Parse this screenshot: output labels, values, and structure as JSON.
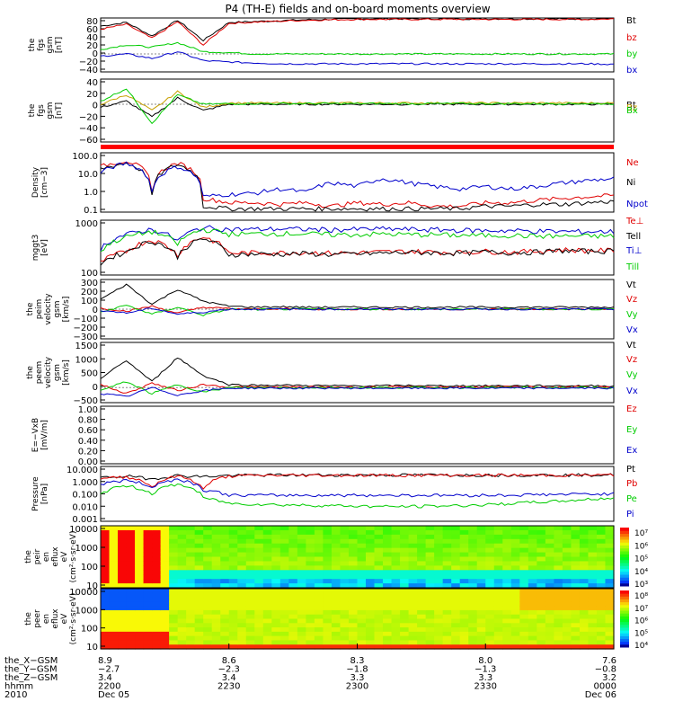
{
  "title": "P4 (TH-E) fields and on-board moments overview",
  "colors": {
    "black": "#000000",
    "red": "#e00000",
    "green": "#00cc00",
    "blue": "#0000cc",
    "orange": "#c8a000"
  },
  "chart_data": [
    {
      "type": "line",
      "id": "fgs_gsm",
      "ylabel": [
        "the",
        "fgs",
        "gsm",
        "[nT]"
      ],
      "ylim": [
        -40,
        80
      ],
      "yticks": [
        "80",
        "60",
        "40",
        "20",
        "0",
        "−20",
        "−40"
      ],
      "series": [
        {
          "name": "Bt",
          "color": "#000000",
          "values": [
            62,
            70,
            40,
            75,
            30,
            70,
            72,
            74,
            76,
            77,
            78,
            78,
            78,
            78,
            78,
            78,
            78,
            78,
            78,
            78,
            79
          ]
        },
        {
          "name": "bz",
          "color": "#e00000",
          "values": [
            55,
            66,
            35,
            72,
            20,
            68,
            71,
            73,
            75,
            76,
            77,
            77,
            77,
            77,
            77,
            77,
            77,
            77,
            77,
            77,
            78
          ]
        },
        {
          "name": "by",
          "color": "#00cc00",
          "values": [
            10,
            20,
            15,
            25,
            5,
            3,
            0,
            0,
            0,
            0,
            0,
            0,
            0,
            0,
            0,
            0,
            0,
            0,
            0,
            0,
            0
          ]
        },
        {
          "name": "bx",
          "color": "#0000cc",
          "values": [
            -5,
            0,
            -10,
            5,
            -15,
            -18,
            -20,
            -22,
            -22,
            -22,
            -22,
            -22,
            -22,
            -22,
            -22,
            -22,
            -22,
            -22,
            -22,
            -22,
            -23
          ]
        }
      ]
    },
    {
      "type": "line",
      "id": "fgs_dsl",
      "ylabel": [
        "the",
        "fgs",
        "gsm",
        "[nT]"
      ],
      "ylim": [
        -60,
        40
      ],
      "yticks": [
        "40",
        "20",
        "0",
        "−20",
        "−40",
        "−60"
      ],
      "series": [
        {
          "name": "Bt",
          "color": "#000000",
          "values": [
            -5,
            5,
            -20,
            10,
            -10,
            0,
            0,
            0,
            0,
            0,
            0,
            0,
            0,
            0,
            0,
            0,
            0,
            0,
            0,
            0,
            0
          ]
        },
        {
          "name": "Bz",
          "color": "#c8a000",
          "values": [
            0,
            15,
            -10,
            20,
            -5,
            2,
            2,
            2,
            2,
            2,
            2,
            2,
            2,
            2,
            2,
            2,
            2,
            2,
            2,
            2,
            2
          ]
        },
        {
          "name": "Bx",
          "color": "#00cc00",
          "values": [
            5,
            25,
            -30,
            15,
            0,
            1,
            1,
            1,
            1,
            1,
            1,
            1,
            1,
            1,
            1,
            1,
            1,
            1,
            1,
            1,
            1
          ]
        }
      ]
    },
    {
      "type": "line",
      "id": "density",
      "log": true,
      "ylabel": [
        "Density",
        "[cm−3]"
      ],
      "ylim": [
        0.1,
        100
      ],
      "yticks": [
        "100.0",
        "10.0",
        "1.0",
        "0.1"
      ],
      "series": [
        {
          "name": "Ne",
          "color": "#e00000",
          "values": [
            20,
            40,
            1,
            30,
            0.5,
            0.3,
            0.3,
            0.25,
            0.3,
            0.2,
            0.3,
            0.25,
            0.3,
            0.2,
            0.2,
            0.3,
            0.3,
            0.4,
            0.5,
            0.6,
            0.7
          ]
        },
        {
          "name": "Ni",
          "color": "#000000",
          "values": [
            15,
            30,
            0.6,
            25,
            0.2,
            0.15,
            0.15,
            0.15,
            0.15,
            0.15,
            0.15,
            0.15,
            0.15,
            0.15,
            0.15,
            0.2,
            0.2,
            0.25,
            0.25,
            0.3,
            0.35
          ]
        },
        {
          "name": "Npot",
          "color": "#0000cc",
          "values": [
            10,
            30,
            1,
            20,
            0.6,
            0.8,
            0.9,
            1.5,
            1,
            3,
            2,
            5,
            3,
            2,
            1.5,
            2,
            1.5,
            2,
            3,
            4,
            5
          ]
        }
      ]
    },
    {
      "type": "line",
      "id": "temp",
      "log": true,
      "ylabel": [
        "mggt3",
        "[eV]"
      ],
      "ylim": [
        30,
        6000
      ],
      "yticks": [
        "1000",
        "100"
      ],
      "series": [
        {
          "name": "Te⊥",
          "color": "#e00000",
          "values": [
            100,
            300,
            900,
            200,
            1200,
            250,
            260,
            260,
            270,
            250,
            260,
            280,
            300,
            280,
            270,
            300,
            280,
            300,
            350,
            320,
            330
          ]
        },
        {
          "name": "Tell",
          "color": "#000000",
          "values": [
            90,
            280,
            800,
            180,
            1000,
            220,
            230,
            230,
            240,
            220,
            230,
            250,
            270,
            260,
            250,
            280,
            260,
            280,
            320,
            300,
            310
          ]
        },
        {
          "name": "Ti⊥",
          "color": "#0000cc",
          "values": [
            400,
            1500,
            2500,
            800,
            3000,
            2500,
            2500,
            2600,
            2500,
            2400,
            2500,
            2600,
            2500,
            2400,
            2300,
            2200,
            2200,
            2100,
            2000,
            2000,
            2000
          ]
        },
        {
          "name": "Till",
          "color": "#00cc00",
          "values": [
            300,
            1200,
            2000,
            600,
            2500,
            1600,
            1600,
            1700,
            1600,
            1500,
            1500,
            1600,
            1500,
            1500,
            1400,
            1400,
            1400,
            1300,
            1300,
            1300,
            1300
          ]
        }
      ]
    },
    {
      "type": "line",
      "id": "peim_vel",
      "ylabel": [
        "the",
        "peim",
        "velocity",
        "gsm",
        "[km/s]"
      ],
      "ylim": [
        -300,
        300
      ],
      "yticks": [
        "300",
        "200",
        "100",
        "0",
        "−100",
        "−200",
        "−300"
      ],
      "series": [
        {
          "name": "Vt",
          "color": "#000000",
          "values": [
            100,
            250,
            50,
            200,
            80,
            30,
            20,
            25,
            20,
            20,
            20,
            20,
            20,
            20,
            20,
            20,
            20,
            20,
            20,
            20,
            20
          ]
        },
        {
          "name": "Vz",
          "color": "#e00000",
          "values": [
            10,
            -20,
            30,
            -40,
            20,
            5,
            0,
            5,
            0,
            0,
            0,
            0,
            0,
            0,
            0,
            0,
            0,
            0,
            0,
            0,
            0
          ]
        },
        {
          "name": "Vy",
          "color": "#00cc00",
          "values": [
            -30,
            40,
            -50,
            20,
            -60,
            0,
            -5,
            0,
            0,
            0,
            0,
            0,
            0,
            0,
            0,
            0,
            0,
            0,
            0,
            0,
            0
          ]
        },
        {
          "name": "Vx",
          "color": "#0000cc",
          "values": [
            -10,
            -40,
            10,
            -50,
            -30,
            0,
            0,
            0,
            0,
            0,
            0,
            0,
            0,
            0,
            0,
            0,
            0,
            0,
            0,
            0,
            0
          ]
        }
      ]
    },
    {
      "type": "line",
      "id": "peem_vel",
      "ylabel": [
        "the",
        "peem",
        "velocity",
        "gsm",
        "[km/s]"
      ],
      "ylim": [
        -500,
        1500
      ],
      "yticks": [
        "1500",
        "1000",
        "500",
        "0",
        "−500"
      ],
      "series": [
        {
          "name": "Vt",
          "color": "#000000",
          "values": [
            300,
            900,
            200,
            1000,
            400,
            100,
            80,
            80,
            70,
            60,
            60,
            60,
            70,
            60,
            60,
            60,
            60,
            60,
            60,
            60,
            60
          ]
        },
        {
          "name": "Vz",
          "color": "#e00000",
          "values": [
            100,
            -200,
            150,
            -100,
            100,
            20,
            20,
            20,
            20,
            20,
            20,
            20,
            20,
            20,
            20,
            20,
            20,
            20,
            20,
            20,
            20
          ]
        },
        {
          "name": "Vy",
          "color": "#00cc00",
          "values": [
            -100,
            200,
            -200,
            100,
            -150,
            0,
            0,
            0,
            0,
            0,
            0,
            0,
            0,
            0,
            0,
            0,
            0,
            0,
            0,
            0,
            0
          ]
        },
        {
          "name": "Vx",
          "color": "#0000cc",
          "values": [
            -200,
            -300,
            0,
            -250,
            -100,
            -20,
            -20,
            -20,
            -20,
            -20,
            -20,
            -20,
            -20,
            -20,
            -20,
            -20,
            -20,
            -20,
            -20,
            -20,
            -20
          ]
        }
      ]
    },
    {
      "type": "line",
      "id": "efield",
      "ylabel": [
        "E=−VxB",
        "[mV/m]"
      ],
      "ylim": [
        0,
        1
      ],
      "yticks": [
        "1.00",
        "0.80",
        "0.60",
        "0.40",
        "0.20",
        "0.00"
      ],
      "series": [
        {
          "name": "Ez",
          "color": "#e00000",
          "values": []
        },
        {
          "name": "Ey",
          "color": "#00cc00",
          "values": []
        },
        {
          "name": "Ex",
          "color": "#0000cc",
          "values": []
        }
      ]
    },
    {
      "type": "line",
      "id": "pressure",
      "log": true,
      "ylabel": [
        "Pressure",
        "[nPa]"
      ],
      "ylim": [
        0.001,
        10
      ],
      "yticks": [
        "10.000",
        "1.000",
        "0.100",
        "0.010",
        "0.001"
      ],
      "series": [
        {
          "name": "Pt",
          "color": "#000000",
          "values": [
            1.5,
            2,
            1.2,
            2.2,
            1.8,
            2.2,
            2.3,
            2.4,
            2.4,
            2.4,
            2.4,
            2.4,
            2.4,
            2.4,
            2.4,
            2.4,
            2.4,
            2.4,
            2.4,
            2.4,
            2.5
          ]
        },
        {
          "name": "Pb",
          "color": "#e00000",
          "values": [
            1.2,
            1.8,
            0.3,
            2,
            0.2,
            2,
            2.2,
            2.3,
            2.3,
            2.3,
            2.3,
            2.3,
            2.3,
            2.3,
            2.3,
            2.3,
            2.3,
            2.3,
            2.3,
            2.3,
            2.4
          ]
        },
        {
          "name": "Pe",
          "color": "#00cc00",
          "values": [
            0.1,
            0.4,
            0.1,
            0.5,
            0.05,
            0.02,
            0.018,
            0.016,
            0.015,
            0.014,
            0.013,
            0.012,
            0.012,
            0.013,
            0.014,
            0.016,
            0.02,
            0.025,
            0.03,
            0.04,
            0.05
          ]
        },
        {
          "name": "Pi",
          "color": "#0000cc",
          "values": [
            0.5,
            1,
            0.3,
            1.2,
            0.2,
            0.08,
            0.08,
            0.08,
            0.08,
            0.08,
            0.08,
            0.08,
            0.08,
            0.08,
            0.08,
            0.08,
            0.08,
            0.09,
            0.09,
            0.1,
            0.1
          ]
        }
      ]
    },
    {
      "type": "heatmap",
      "id": "peir_spec",
      "ylabel": [
        "the",
        "peir",
        "en",
        "eflux",
        "eV",
        "(cm²·s·sr·eV)"
      ],
      "yticks": [
        "10000",
        "1000",
        "100",
        "10"
      ],
      "colorbar_ticks": [
        "10⁷",
        "10⁶",
        "10⁵",
        "10⁴",
        "10³"
      ]
    },
    {
      "type": "heatmap",
      "id": "peer_spec",
      "ylabel": [
        "the",
        "peer",
        "en",
        "eflux",
        "eV",
        "(cm²·s·sr·eV)"
      ],
      "yticks": [
        "10000",
        "1000",
        "100",
        "10"
      ],
      "colorbar_ticks": [
        "10⁸",
        "10⁷",
        "10⁶",
        "10⁵",
        "10⁴"
      ]
    }
  ],
  "orbit": {
    "labels": [
      "the_X−GSM",
      "the_Y−GSM",
      "the_Z−GSM",
      "hhmm",
      "2010"
    ],
    "columns": [
      [
        "8.9",
        "−2.7",
        "3.4",
        "2200",
        "Dec 05"
      ],
      [
        "8.6",
        "−2.3",
        "3.4",
        "2230",
        ""
      ],
      [
        "8.3",
        "−1.8",
        "3.3",
        "2300",
        ""
      ],
      [
        "8.0",
        "−1.3",
        "3.3",
        "2330",
        ""
      ],
      [
        "7.6",
        "−0.8",
        "3.2",
        "0000",
        "Dec 06"
      ]
    ]
  }
}
